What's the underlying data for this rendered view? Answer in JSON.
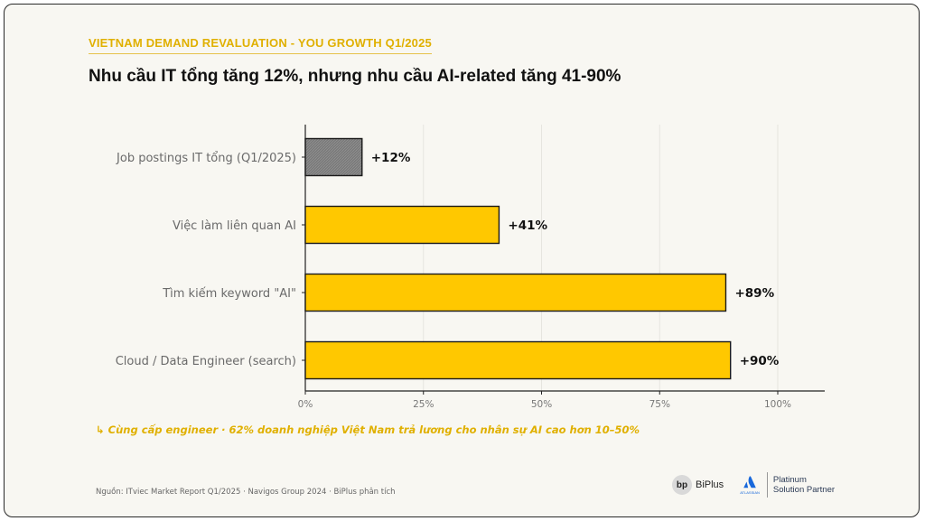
{
  "header": {
    "eyebrow": "VIETNAM DEMAND REVALUATION - YOU GROWTH Q1/2025",
    "title": "Nhu cầu IT tổng tăng 12%, nhưng nhu cầu AI-related tăng 41-90%"
  },
  "chart_data": {
    "type": "bar",
    "orientation": "horizontal",
    "categories": [
      "Job postings IT tổng (Q1/2025)",
      "Việc làm liên quan AI",
      "Tìm kiếm keyword \"AI\"",
      "Cloud / Data Engineer (search)"
    ],
    "values": [
      12,
      41,
      89,
      90
    ],
    "data_labels": [
      "+12%",
      "+41%",
      "+89%",
      "+90%"
    ],
    "bar_colors": [
      "#808080",
      "#ffc800",
      "#ffc800",
      "#ffc800"
    ],
    "xlim": [
      0,
      110
    ],
    "xticks": [
      0,
      25,
      50,
      75,
      100
    ],
    "xtick_labels": [
      "0%",
      "25%",
      "50%",
      "75%",
      "100%"
    ],
    "grid": "vertical, faint"
  },
  "footer": {
    "note": "↳ Cùng cấp engineer · 62% doanh nghiệp Việt Nam trả lương cho nhân sự AI cao hơn 10–50%",
    "source": "Nguồn: ITviec Market Report Q1/2025 · Navigos Group 2024 · BiPlus phân tích",
    "biplus_mark": "bp",
    "biplus_name": "BiPlus",
    "atlassian_name": "ATLASSIAN",
    "partner_line1": "Platinum",
    "partner_line2": "Solution Partner"
  },
  "colors": {
    "accent": "#ffc800",
    "neutral_bar": "#808080",
    "eyebrow": "#e0b000",
    "background": "#f8f7f2"
  }
}
